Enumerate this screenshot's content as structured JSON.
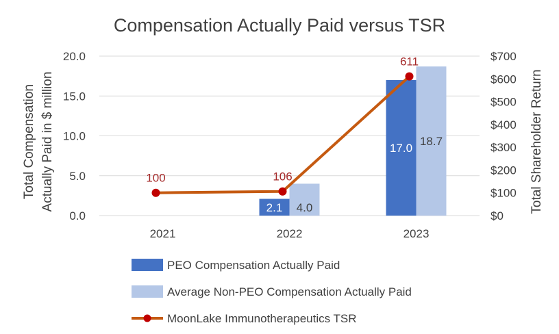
{
  "chart_data": {
    "type": "bar",
    "title": "Compensation Actually Paid versus TSR",
    "categories": [
      "2021",
      "2022",
      "2023"
    ],
    "ylabel_left_line1": "Total Compensation",
    "ylabel_left_line2": "Actually Paid in $ million",
    "ylabel_right": "Total Shareholder Return",
    "ylim_left": [
      0,
      20
    ],
    "yticks_left": [
      "0.0",
      "5.0",
      "10.0",
      "15.0",
      "20.0"
    ],
    "yticks_left_values": [
      0,
      5,
      10,
      15,
      20
    ],
    "ylim_right": [
      0,
      700
    ],
    "yticks_right": [
      "$0",
      "$100",
      "$200",
      "$300",
      "$400",
      "$500",
      "$600",
      "$700"
    ],
    "yticks_right_values": [
      0,
      100,
      200,
      300,
      400,
      500,
      600,
      700
    ],
    "series": [
      {
        "name": "PEO Compensation Actually Paid",
        "type": "bar",
        "axis": "left",
        "color": "#4472C4",
        "label_color": "#ffffff",
        "values": [
          null,
          2.1,
          17.0
        ],
        "labels": [
          "",
          "2.1",
          "17.0"
        ]
      },
      {
        "name": "Average Non-PEO Compensation Actually Paid",
        "type": "bar",
        "axis": "left",
        "color": "#B4C7E7",
        "label_color": "#404040",
        "values": [
          null,
          4.0,
          18.7
        ],
        "labels": [
          "",
          "4.0",
          "18.7"
        ]
      },
      {
        "name": "MoonLake Immunotherapeutics TSR",
        "type": "line",
        "axis": "right",
        "color": "#C55A11",
        "marker_color": "#C00000",
        "label_color": "#A52A2A",
        "values": [
          100,
          106,
          611
        ],
        "labels": [
          "100",
          "106",
          "611"
        ]
      }
    ],
    "legend_position": "bottom"
  }
}
